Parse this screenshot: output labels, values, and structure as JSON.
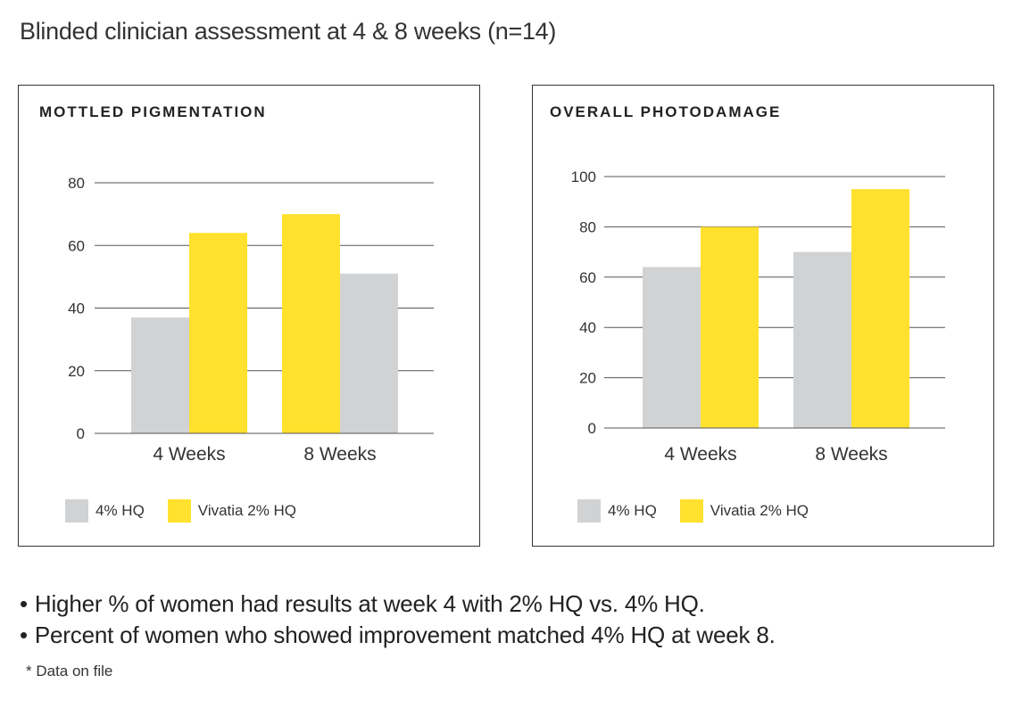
{
  "title": "Blinded clinician assessment at 4 & 8 weeks (n=14)",
  "colors": {
    "hq4": "#d1d2d4",
    "vivatia": "#ffe12e",
    "grid": "#555555",
    "text": "#333333"
  },
  "chart_data": [
    {
      "type": "bar",
      "title": "MOTTLED PIGMENTATION",
      "categories": [
        "4 Weeks",
        "8 Weeks"
      ],
      "yticks": [
        0,
        20,
        40,
        60,
        80
      ],
      "ylim": [
        0,
        80
      ],
      "grid": true,
      "legend_position": "bottom-left",
      "series": [
        {
          "name": "4% HQ",
          "values": [
            37,
            51
          ]
        },
        {
          "name": "Vivatia 2% HQ",
          "values": [
            64,
            70
          ]
        }
      ],
      "bar_order": [
        [
          0,
          1
        ],
        [
          1,
          0
        ]
      ]
    },
    {
      "type": "bar",
      "title": "OVERALL PHOTODAMAGE",
      "categories": [
        "4 Weeks",
        "8 Weeks"
      ],
      "yticks": [
        0,
        20,
        40,
        60,
        80,
        100
      ],
      "ylim": [
        0,
        100
      ],
      "grid": true,
      "legend_position": "bottom-left",
      "series": [
        {
          "name": "4% HQ",
          "values": [
            64,
            70
          ]
        },
        {
          "name": "Vivatia 2% HQ",
          "values": [
            80,
            95
          ]
        }
      ],
      "bar_order": [
        [
          0,
          1
        ],
        [
          0,
          1
        ]
      ]
    }
  ],
  "bullets": [
    "Higher % of women had results at week 4 with 2% HQ vs. 4% HQ.",
    "Percent of women who showed improvement matched 4% HQ at week 8."
  ],
  "bullet_symbol": "•",
  "footnote": "* Data on file"
}
